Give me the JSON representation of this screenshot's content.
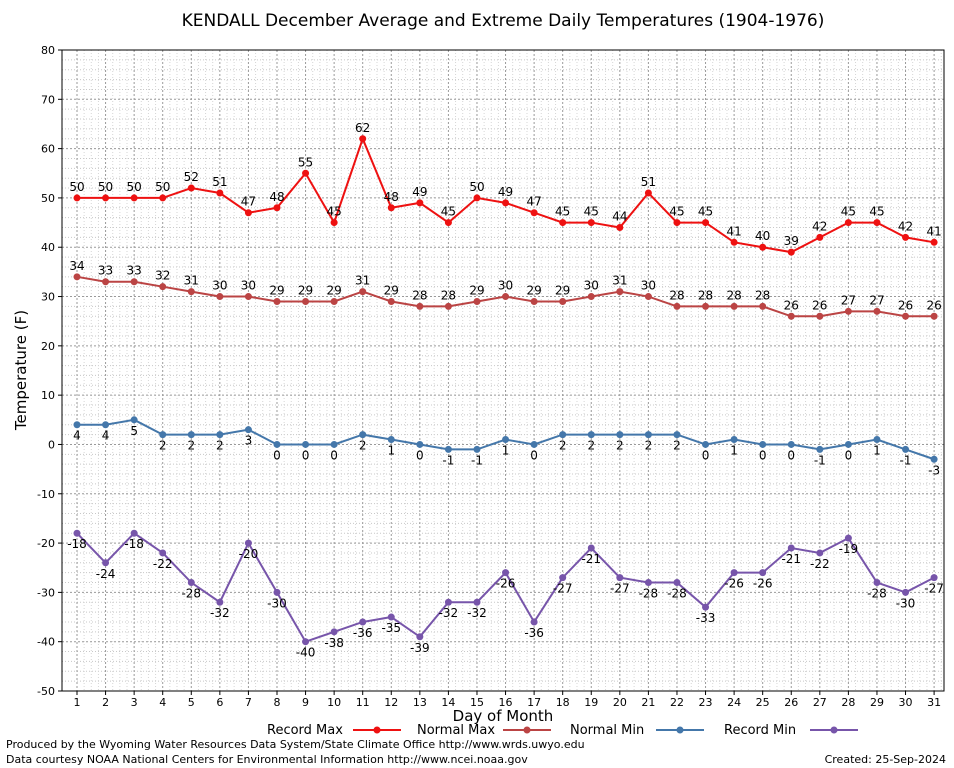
{
  "chart_data": {
    "type": "line",
    "title": "KENDALL December Average and Extreme Daily Temperatures (1904-1976)",
    "xlabel": "Day of Month",
    "ylabel": "Temperature (F)",
    "ylim": [
      -50,
      80
    ],
    "yticks": [
      -50,
      -40,
      -30,
      -20,
      -10,
      0,
      10,
      20,
      30,
      40,
      50,
      60,
      70,
      80
    ],
    "grid": true,
    "legend_placement": "bottom",
    "categories": [
      1,
      2,
      3,
      4,
      5,
      6,
      7,
      8,
      9,
      10,
      11,
      12,
      13,
      14,
      15,
      16,
      17,
      18,
      19,
      20,
      21,
      22,
      23,
      24,
      25,
      26,
      27,
      28,
      29,
      30,
      31
    ],
    "series": [
      {
        "name": "Record Max",
        "color": "#ee1111",
        "values": [
          50,
          50,
          50,
          50,
          52,
          51,
          47,
          48,
          55,
          45,
          62,
          48,
          49,
          45,
          50,
          49,
          47,
          45,
          45,
          44,
          51,
          45,
          45,
          41,
          40,
          39,
          42,
          45,
          45,
          42,
          41
        ]
      },
      {
        "name": "Normal Max",
        "color": "#bb4444",
        "values": [
          34,
          33,
          33,
          32,
          31,
          30,
          30,
          29,
          29,
          29,
          31,
          29,
          28,
          28,
          29,
          30,
          29,
          29,
          30,
          31,
          30,
          28,
          28,
          28,
          28,
          26,
          26,
          27,
          27,
          26,
          26
        ]
      },
      {
        "name": "Normal Min",
        "color": "#4477aa",
        "values": [
          4,
          4,
          5,
          2,
          2,
          2,
          3,
          0,
          0,
          0,
          2,
          1,
          0,
          -1,
          -1,
          1,
          0,
          2,
          2,
          2,
          2,
          2,
          0,
          1,
          0,
          0,
          -1,
          0,
          1,
          -1,
          -3
        ]
      },
      {
        "name": "Record Min",
        "color": "#7755aa",
        "values": [
          -18,
          -24,
          -18,
          -22,
          -28,
          -32,
          -20,
          -30,
          -40,
          -38,
          -36,
          -35,
          -39,
          -32,
          -32,
          -26,
          -36,
          -27,
          -21,
          -27,
          -28,
          -28,
          -33,
          -26,
          -26,
          -21,
          -22,
          -19,
          -28,
          -30,
          -27
        ]
      }
    ]
  },
  "footer": {
    "produced_by": "Produced by the Wyoming Water Resources Data System/State Climate Office http://www.wrds.uwyo.edu",
    "data_courtesy": "Data courtesy NOAA National Centers for Environmental Information http://www.ncei.noaa.gov",
    "created": "Created:  25-Sep-2024"
  }
}
